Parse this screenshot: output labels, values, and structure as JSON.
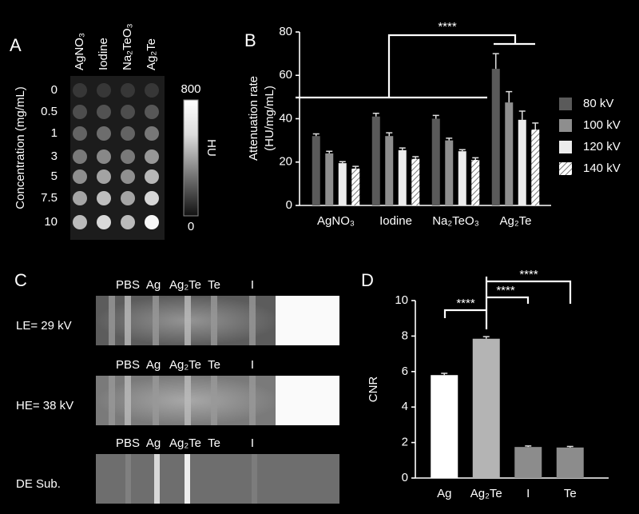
{
  "panel_a": {
    "letter": "A",
    "columns": [
      "AgNO₃",
      "Iodine",
      "Na₂TeO₃",
      "Ag₂Te"
    ],
    "rows": [
      "0",
      "0.5",
      "1",
      "3",
      "5",
      "7.5",
      "10"
    ],
    "y_label": "Concentration (mg/mL)",
    "colorbar": {
      "max": 800,
      "min": 0,
      "label": "HU"
    }
  },
  "chart_data": [
    {
      "type": "bar",
      "panel": "B",
      "y_label": [
        "Attenuation rate",
        "(HU/mg/mL)"
      ],
      "categories": [
        "AgNO₃",
        "Iodine",
        "Na₂TeO₃",
        "Ag₂Te"
      ],
      "series": [
        {
          "name": "80 kV",
          "color": "#5a5a5a",
          "values": [
            32,
            41,
            40,
            63
          ],
          "errors": [
            1,
            1.5,
            1.5,
            7
          ]
        },
        {
          "name": "100 kV",
          "color": "#8e8e8e",
          "values": [
            24,
            32,
            30,
            47.5
          ],
          "errors": [
            1,
            1.5,
            1,
            5
          ]
        },
        {
          "name": "120 kV",
          "color": "#ececec",
          "values": [
            19.5,
            25.5,
            25,
            39.5
          ],
          "errors": [
            0.7,
            1,
            0.7,
            4
          ]
        },
        {
          "name": "140 kV",
          "color": "#ffffff",
          "hatch": true,
          "values": [
            17,
            21.5,
            21,
            35
          ],
          "errors": [
            1,
            1,
            1,
            3
          ]
        }
      ],
      "ylim": [
        0,
        80
      ],
      "yticks": [
        0,
        20,
        40,
        60,
        80
      ],
      "annotations": [
        "****"
      ],
      "legend": "right"
    },
    {
      "type": "bar",
      "panel": "D",
      "y_label": "CNR",
      "categories": [
        "Ag",
        "Ag₂Te",
        "I",
        "Te"
      ],
      "values": [
        5.8,
        7.85,
        1.75,
        1.72
      ],
      "errors": [
        0.1,
        0.12,
        0.06,
        0.06
      ],
      "colors": [
        "#ffffff",
        "#b4b4b4",
        "#8c8c8c",
        "#8c8c8c"
      ],
      "ylim": [
        0,
        10
      ],
      "yticks": [
        0,
        2,
        4,
        6,
        8,
        10
      ],
      "annotations": [
        "****",
        "****",
        "****"
      ]
    }
  ],
  "panel_c": {
    "letter": "C",
    "rows": [
      {
        "label": "LE= 29 kV",
        "lanes": [
          "PBS",
          "Ag",
          "Ag₂Te",
          "Te",
          "I"
        ]
      },
      {
        "label": "HE= 38 kV",
        "lanes": [
          "PBS",
          "Ag",
          "Ag₂Te",
          "Te",
          "I"
        ]
      },
      {
        "label": "DE Sub.",
        "lanes": [
          "PBS",
          "Ag",
          "Ag₂Te",
          "Te",
          "I"
        ]
      }
    ]
  }
}
